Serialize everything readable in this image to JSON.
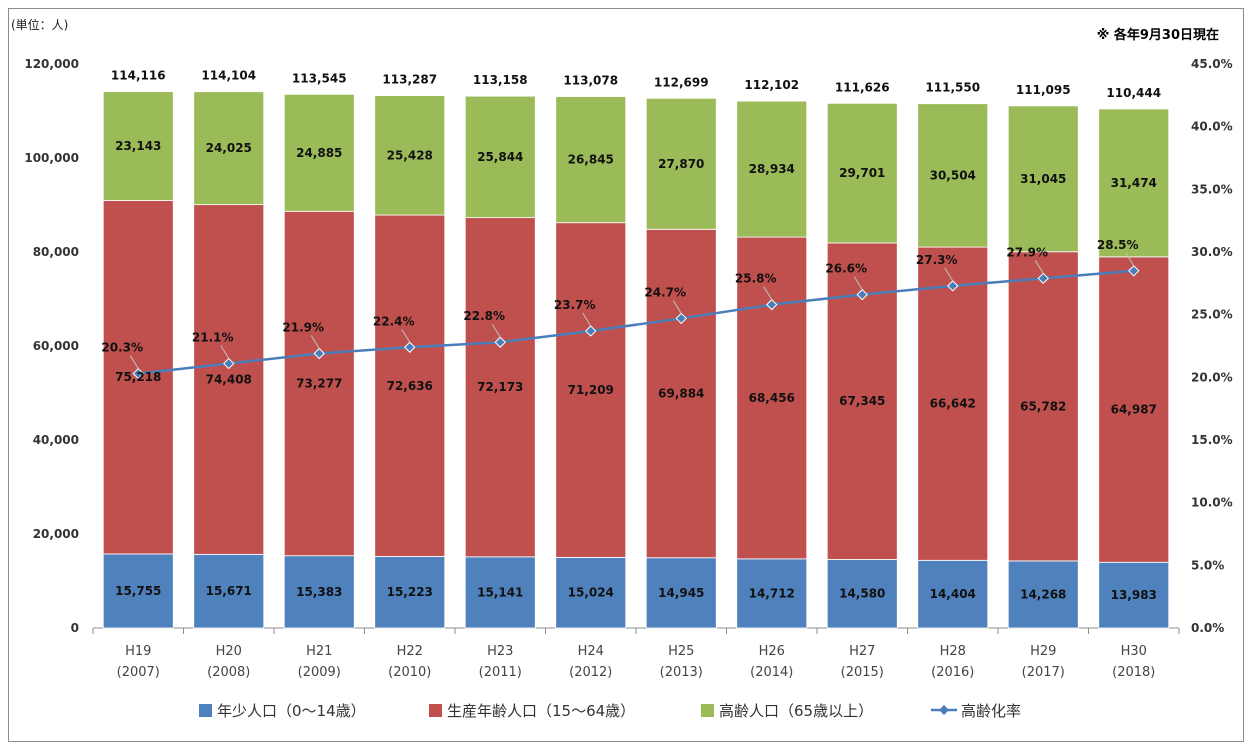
{
  "chart_data": {
    "type": "bar",
    "stacked": true,
    "unit_label": "(単位：人)",
    "note": "※ 各年9月30日現在",
    "categories": [
      "H19",
      "H20",
      "H21",
      "H22",
      "H23",
      "H24",
      "H25",
      "H26",
      "H27",
      "H28",
      "H29",
      "H30"
    ],
    "categories_sub": [
      "(2007)",
      "(2008)",
      "(2009)",
      "(2010)",
      "(2011)",
      "(2012)",
      "(2013)",
      "(2014)",
      "(2015)",
      "(2016)",
      "(2017)",
      "(2018)"
    ],
    "series": [
      {
        "name": "年少人口（0〜14歳）",
        "color": "#4f81bd",
        "values": [
          15755,
          15671,
          15383,
          15223,
          15141,
          15024,
          14945,
          14712,
          14580,
          14404,
          14268,
          13983
        ],
        "labels": [
          "15,755",
          "15,671",
          "15,383",
          "15,223",
          "15,141",
          "15,024",
          "14,945",
          "14,712",
          "14,580",
          "14,404",
          "14,268",
          "13,983"
        ]
      },
      {
        "name": "生産年齢人口（15〜64歳）",
        "color": "#c0504d",
        "values": [
          75218,
          74408,
          73277,
          72636,
          72173,
          71209,
          69884,
          68456,
          67345,
          66642,
          65782,
          64987
        ],
        "labels": [
          "75,218",
          "74,408",
          "73,277",
          "72,636",
          "72,173",
          "71,209",
          "69,884",
          "68,456",
          "67,345",
          "66,642",
          "65,782",
          "64,987"
        ]
      },
      {
        "name": "高齢人口（65歳以上）",
        "color": "#9bbb59",
        "values": [
          23143,
          24025,
          24885,
          25428,
          25844,
          26845,
          27870,
          28934,
          29701,
          30504,
          31045,
          31474
        ],
        "labels": [
          "23,143",
          "24,025",
          "24,885",
          "25,428",
          "25,844",
          "26,845",
          "27,870",
          "28,934",
          "29,701",
          "30,504",
          "31,045",
          "31,474"
        ]
      }
    ],
    "totals": [
      114116,
      114104,
      113545,
      113287,
      113158,
      113078,
      112699,
      112102,
      111626,
      111550,
      111095,
      110444
    ],
    "total_labels": [
      "114,116",
      "114,104",
      "113,545",
      "113,287",
      "113,158",
      "113,078",
      "112,699",
      "112,102",
      "111,626",
      "111,550",
      "111,095",
      "110,444"
    ],
    "line_series": {
      "name": "高齢化率",
      "color": "#4a7ebb",
      "axis": "right",
      "values": [
        20.3,
        21.1,
        21.9,
        22.4,
        22.8,
        23.7,
        24.7,
        25.8,
        26.6,
        27.3,
        27.9,
        28.5
      ],
      "labels": [
        "20.3%",
        "21.1%",
        "21.9%",
        "22.4%",
        "22.8%",
        "23.7%",
        "24.7%",
        "25.8%",
        "26.6%",
        "27.3%",
        "27.9%",
        "28.5%"
      ]
    },
    "y_left": {
      "min": 0,
      "max": 120000,
      "step": 20000,
      "tick_labels": [
        "0",
        "20,000",
        "40,000",
        "60,000",
        "80,000",
        "100,000",
        "120,000"
      ]
    },
    "y_right": {
      "min": 0,
      "max": 45,
      "step": 5,
      "tick_labels": [
        "0.0%",
        "5.0%",
        "10.0%",
        "15.0%",
        "20.0%",
        "25.0%",
        "30.0%",
        "35.0%",
        "40.0%",
        "45.0%"
      ]
    },
    "grid": false,
    "legend_position": "bottom"
  }
}
